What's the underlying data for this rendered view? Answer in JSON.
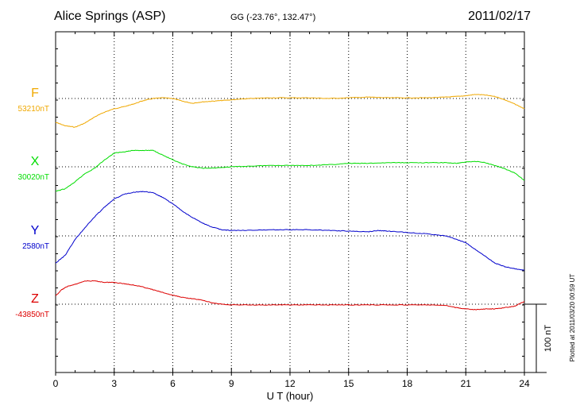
{
  "header": {
    "station": "Alice Springs (ASP)",
    "coords": "GG (-23.76°, 132.47°)",
    "date": "2011/02/17"
  },
  "footer": {
    "plotted": "Plotted at 2011/03/20 00:59 UT"
  },
  "chart_data": {
    "type": "line",
    "title": "Alice Springs (ASP)",
    "xlabel": "U T (hour)",
    "ylabel": "",
    "xlim": [
      0,
      24
    ],
    "x_ticks": [
      "0",
      "3",
      "6",
      "9",
      "12",
      "15",
      "18",
      "21",
      "24"
    ],
    "scale_bar": {
      "label": "100 nT",
      "value_nT": 100
    },
    "grid": true,
    "series": [
      {
        "name": "F",
        "baseline_label": "53210nT",
        "color": "#f0a800",
        "baseline_nT": 53210,
        "x": [
          0,
          0.5,
          1,
          1.5,
          2,
          2.5,
          3,
          3.5,
          4,
          4.5,
          5,
          5.5,
          6,
          6.5,
          7,
          7.5,
          8,
          8.5,
          9,
          9.5,
          10,
          11,
          12,
          13,
          14,
          15,
          16,
          17,
          18,
          19,
          20,
          20.5,
          21,
          21.5,
          22,
          22.5,
          23,
          23.5,
          24
        ],
        "y": [
          35,
          40,
          42,
          36,
          27,
          20,
          15,
          12,
          8,
          3,
          0,
          -1,
          0,
          4,
          7,
          5,
          4,
          3,
          2,
          1,
          0,
          -1,
          -1,
          -1,
          0,
          -1,
          -2,
          -1,
          -1,
          -1,
          -2,
          -3,
          -4,
          -6,
          -5,
          -3,
          2,
          8,
          15
        ]
      },
      {
        "name": "X",
        "baseline_label": "30020nT",
        "color": "#00dd00",
        "baseline_nT": 30020,
        "x": [
          0,
          0.5,
          1,
          1.5,
          2,
          2.5,
          3,
          3.5,
          4,
          4.5,
          5,
          5.5,
          6,
          6.5,
          7,
          7.5,
          8,
          8.5,
          9,
          10,
          11,
          12,
          13,
          14,
          15,
          16,
          17,
          18,
          19,
          20,
          20.5,
          21,
          21.5,
          22,
          22.5,
          23,
          23.5,
          24
        ],
        "y": [
          36,
          32,
          22,
          10,
          2,
          -10,
          -20,
          -22,
          -24,
          -24,
          -24,
          -17,
          -10,
          -4,
          0,
          2,
          2,
          1,
          0,
          -1,
          -2,
          -2,
          -2,
          -3,
          -5,
          -5,
          -6,
          -6,
          -6,
          -6,
          -5,
          -7,
          -8,
          -6,
          -2,
          3,
          9,
          20
        ]
      },
      {
        "name": "Y",
        "baseline_label": "2580nT",
        "color": "#0000cc",
        "baseline_nT": 2580,
        "x": [
          0,
          0.5,
          1,
          1.5,
          2,
          2.5,
          3,
          3.5,
          4,
          4.5,
          5,
          5.5,
          6,
          6.5,
          7,
          7.5,
          8,
          8.5,
          9,
          10,
          11,
          12,
          13,
          14,
          15,
          16,
          16.5,
          17,
          18,
          19,
          20,
          20.5,
          21,
          21.5,
          22,
          22.5,
          23,
          23.5,
          24
        ],
        "y": [
          40,
          28,
          5,
          -12,
          -28,
          -42,
          -54,
          -61,
          -64,
          -65,
          -63,
          -56,
          -47,
          -36,
          -27,
          -19,
          -13,
          -9,
          -8,
          -8,
          -9,
          -9,
          -9,
          -8,
          -7,
          -6,
          -8,
          -7,
          -5,
          -3,
          0,
          5,
          10,
          20,
          30,
          40,
          45,
          48,
          50
        ]
      },
      {
        "name": "Z",
        "baseline_label": "-43850nT",
        "color": "#dd0000",
        "baseline_nT": -43850,
        "x": [
          0,
          0.3,
          0.6,
          1,
          1.5,
          2,
          2.5,
          3,
          3.5,
          4,
          4.5,
          5,
          5.5,
          6,
          6.5,
          7,
          7.5,
          8,
          8.5,
          9,
          10,
          11,
          12,
          13,
          14,
          15,
          16,
          17,
          18,
          19,
          20,
          20.5,
          21,
          21.5,
          22,
          22.5,
          23,
          23.5,
          24
        ],
        "y": [
          -12,
          -21,
          -26,
          -29,
          -34,
          -34,
          -32,
          -32,
          -30,
          -28,
          -25,
          -21,
          -17,
          -13,
          -10,
          -8,
          -6,
          -2,
          0,
          1,
          1,
          1,
          1,
          1,
          1,
          1,
          1,
          1,
          1,
          1,
          2,
          5,
          7,
          8,
          7,
          7,
          5,
          3,
          -4
        ]
      }
    ]
  }
}
